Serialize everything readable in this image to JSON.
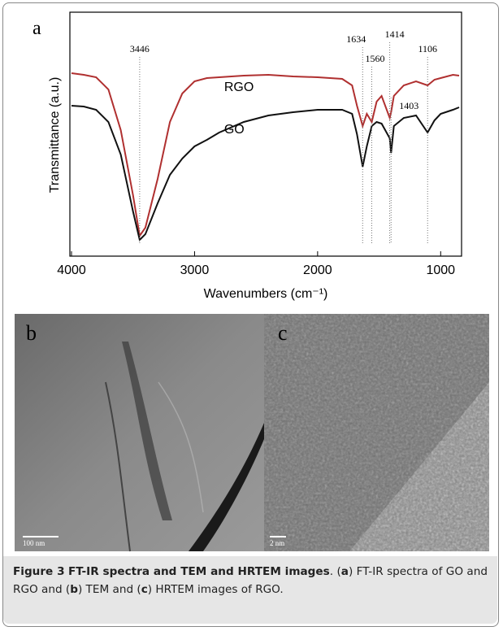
{
  "figure": {
    "panels": [
      "a",
      "b",
      "c"
    ],
    "scale_bars": [
      "100 nm",
      "2 nm"
    ],
    "caption": {
      "label": "Figure 3",
      "title": "FT-IR spectra and TEM and HRTEM images",
      "parts": [
        ". (",
        "a",
        ") FT-IR spectra of GO and RGO and (",
        "b",
        ") TEM and (",
        "c",
        ") HRTEM images of RGO."
      ]
    }
  },
  "chart_data": {
    "type": "line",
    "xlabel": "Wavenumbers (cm⁻¹)",
    "ylabel": "Transmittance (a.u.)",
    "x": [
      4000,
      3900,
      3800,
      3700,
      3600,
      3500,
      3446,
      3400,
      3300,
      3200,
      3100,
      3000,
      2900,
      2800,
      2600,
      2400,
      2200,
      2000,
      1800,
      1720,
      1680,
      1634,
      1600,
      1560,
      1520,
      1480,
      1414,
      1403,
      1380,
      1300,
      1200,
      1106,
      1050,
      1000,
      900,
      850
    ],
    "series": [
      {
        "name": "RGO",
        "color": "#b03030",
        "values": [
          225,
          223,
          220,
          205,
          155,
          75,
          25,
          35,
          95,
          165,
          200,
          215,
          219,
          220,
          222,
          223,
          221,
          220,
          218,
          210,
          185,
          160,
          175,
          165,
          190,
          197,
          170,
          177,
          197,
          210,
          215,
          210,
          217,
          219,
          223,
          222
        ]
      },
      {
        "name": "GO",
        "color": "#111111",
        "values": [
          185,
          184,
          180,
          165,
          125,
          55,
          20,
          27,
          65,
          100,
          120,
          135,
          143,
          152,
          165,
          173,
          177,
          180,
          180,
          175,
          150,
          110,
          135,
          160,
          165,
          163,
          145,
          127,
          160,
          170,
          173,
          152,
          167,
          175,
          180,
          183
        ]
      }
    ],
    "xlim": [
      4000,
      850
    ],
    "xticks": [
      4000,
      3000,
      2000,
      1000
    ],
    "ylim": [
      0,
      300
    ],
    "annotations": [
      3446,
      1634,
      1560,
      1414,
      1403,
      1106
    ]
  }
}
